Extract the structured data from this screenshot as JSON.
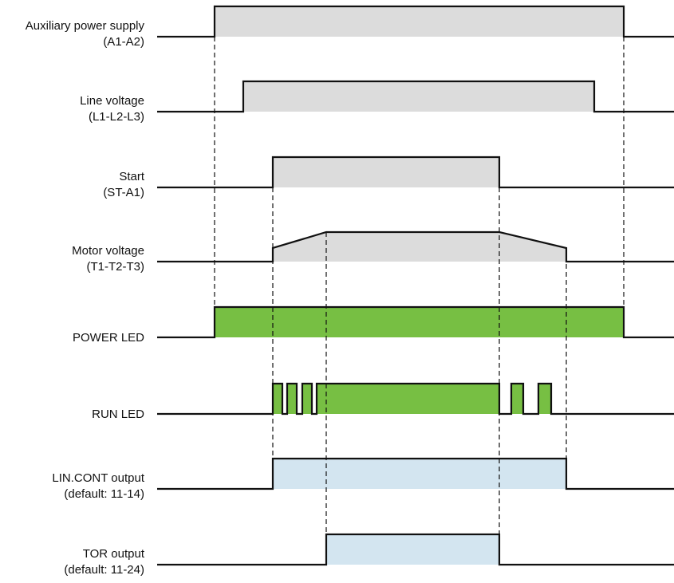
{
  "signals": [
    {
      "id": "aux",
      "line1": "Auxiliary power supply",
      "line2": "(A1-A2)",
      "fill": "#dcdcdc"
    },
    {
      "id": "line",
      "line1": "Line voltage",
      "line2": "(L1-L2-L3)",
      "fill": "#dcdcdc"
    },
    {
      "id": "start",
      "line1": "Start",
      "line2": "(ST-A1)",
      "fill": "#dcdcdc"
    },
    {
      "id": "motor",
      "line1": "Motor voltage",
      "line2": "(T1-T2-T3)",
      "fill": "#dcdcdc"
    },
    {
      "id": "power-led",
      "line1": "POWER LED",
      "line2": "",
      "fill": "#77bf43"
    },
    {
      "id": "run-led",
      "line1": "RUN LED",
      "line2": "",
      "fill": "#77bf43"
    },
    {
      "id": "lincont",
      "line1": "LIN.CONT output",
      "line2": "(default: 11-14)",
      "fill": "#d3e5f0"
    },
    {
      "id": "tor",
      "line1": "TOR output",
      "line2": "(default: 11-24)",
      "fill": "#d3e5f0"
    }
  ]
}
